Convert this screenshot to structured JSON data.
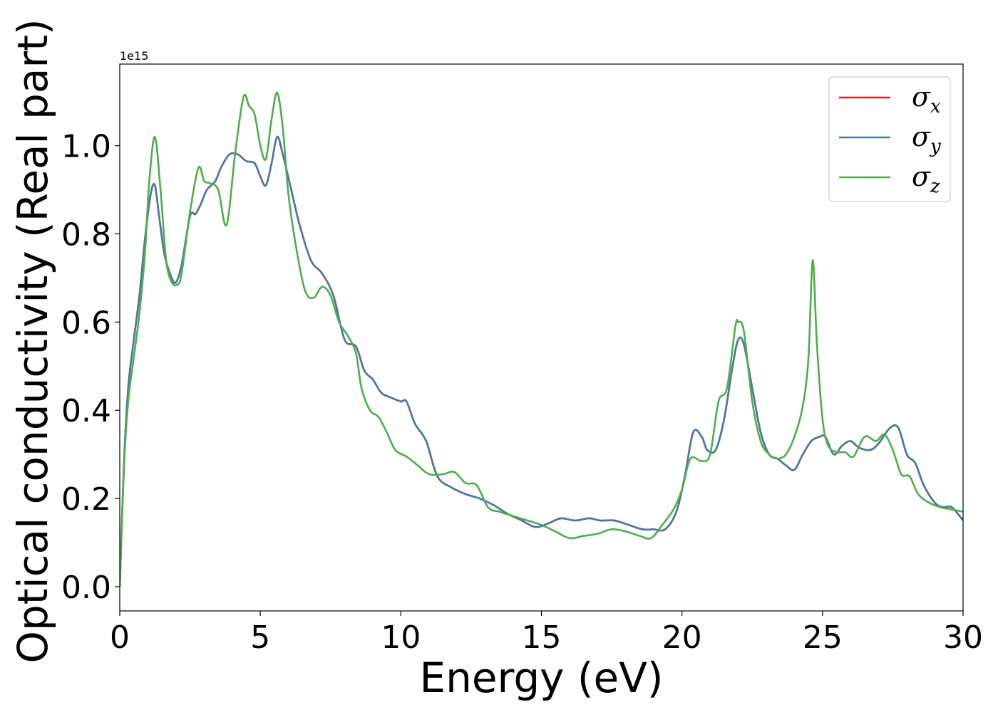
{
  "chart_data": {
    "type": "line",
    "xlabel": "Energy (eV)",
    "ylabel": "Optical conductivity (Real part)",
    "y_offset_text": "1e15",
    "y_scale": 1000000000000000.0,
    "xlim": [
      0,
      30
    ],
    "ylim": [
      -0.055,
      1.185
    ],
    "xticks": [
      0,
      5,
      10,
      15,
      20,
      25,
      30
    ],
    "xtick_labels": [
      "0",
      "5",
      "10",
      "15",
      "20",
      "25",
      "30"
    ],
    "yticks": [
      0.0,
      0.2,
      0.4,
      0.6,
      0.8,
      1.0
    ],
    "ytick_labels": [
      "0.0",
      "0.2",
      "0.4",
      "0.6",
      "0.8",
      "1.0"
    ],
    "grid": false,
    "legend_position": "top-right",
    "series": [
      {
        "name": "σx",
        "symbol": "σ",
        "subscript": "x",
        "color": "#e41a1c",
        "x": [
          0,
          0.15,
          0.3,
          0.5,
          0.7,
          0.9,
          1.1,
          1.25,
          1.4,
          1.6,
          1.85,
          2.0,
          2.2,
          2.5,
          2.7,
          2.9,
          3.1,
          3.4,
          3.6,
          3.9,
          4.2,
          4.5,
          4.8,
          5.0,
          5.2,
          5.4,
          5.6,
          5.8,
          6.1,
          6.4,
          6.8,
          7.2,
          7.6,
          8.0,
          8.4,
          8.7,
          9.0,
          9.3,
          9.6,
          10.0,
          10.2,
          10.5,
          10.9,
          11.3,
          11.8,
          12.3,
          12.8,
          13.3,
          13.8,
          14.3,
          14.8,
          15.3,
          15.7,
          16.2,
          16.7,
          17.1,
          17.6,
          18.1,
          18.6,
          19.0,
          19.4,
          19.8,
          20.1,
          20.4,
          20.7,
          20.9,
          21.2,
          21.5,
          21.8,
          22.0,
          22.2,
          22.5,
          22.8,
          23.1,
          23.4,
          23.7,
          24.0,
          24.3,
          24.6,
          24.9,
          25.1,
          25.4,
          25.7,
          26.0,
          26.3,
          26.7,
          27.0,
          27.4,
          27.7,
          28.0,
          28.3,
          28.6,
          29.0,
          29.3,
          29.6,
          30.0
        ],
        "y": [
          0.0,
          0.28,
          0.45,
          0.56,
          0.66,
          0.79,
          0.89,
          0.91,
          0.84,
          0.75,
          0.7,
          0.69,
          0.73,
          0.84,
          0.845,
          0.87,
          0.9,
          0.92,
          0.95,
          0.98,
          0.98,
          0.965,
          0.96,
          0.93,
          0.91,
          0.96,
          1.02,
          0.98,
          0.9,
          0.82,
          0.74,
          0.71,
          0.66,
          0.56,
          0.545,
          0.49,
          0.47,
          0.44,
          0.43,
          0.42,
          0.42,
          0.37,
          0.33,
          0.25,
          0.225,
          0.21,
          0.2,
          0.185,
          0.165,
          0.15,
          0.135,
          0.145,
          0.155,
          0.15,
          0.155,
          0.15,
          0.15,
          0.14,
          0.13,
          0.13,
          0.13,
          0.17,
          0.25,
          0.35,
          0.34,
          0.31,
          0.31,
          0.38,
          0.5,
          0.56,
          0.55,
          0.45,
          0.35,
          0.3,
          0.29,
          0.275,
          0.265,
          0.3,
          0.33,
          0.34,
          0.34,
          0.3,
          0.32,
          0.33,
          0.315,
          0.31,
          0.325,
          0.36,
          0.36,
          0.3,
          0.28,
          0.23,
          0.19,
          0.18,
          0.18,
          0.15
        ]
      },
      {
        "name": "σy",
        "symbol": "σ",
        "subscript": "y",
        "color": "#4a78aa",
        "x": [
          0,
          0.15,
          0.3,
          0.5,
          0.7,
          0.9,
          1.1,
          1.25,
          1.4,
          1.6,
          1.85,
          2.0,
          2.2,
          2.5,
          2.7,
          2.9,
          3.1,
          3.4,
          3.6,
          3.9,
          4.2,
          4.5,
          4.8,
          5.0,
          5.2,
          5.4,
          5.6,
          5.8,
          6.1,
          6.4,
          6.8,
          7.2,
          7.6,
          8.0,
          8.4,
          8.7,
          9.0,
          9.3,
          9.6,
          10.0,
          10.2,
          10.5,
          10.9,
          11.3,
          11.8,
          12.3,
          12.8,
          13.3,
          13.8,
          14.3,
          14.8,
          15.3,
          15.7,
          16.2,
          16.7,
          17.1,
          17.6,
          18.1,
          18.6,
          19.0,
          19.4,
          19.8,
          20.1,
          20.4,
          20.7,
          20.9,
          21.2,
          21.5,
          21.8,
          22.0,
          22.2,
          22.5,
          22.8,
          23.1,
          23.4,
          23.7,
          24.0,
          24.3,
          24.6,
          24.9,
          25.1,
          25.4,
          25.7,
          26.0,
          26.3,
          26.7,
          27.0,
          27.4,
          27.7,
          28.0,
          28.3,
          28.6,
          29.0,
          29.3,
          29.6,
          30.0
        ],
        "y": [
          0.0,
          0.28,
          0.45,
          0.56,
          0.66,
          0.79,
          0.89,
          0.91,
          0.84,
          0.75,
          0.7,
          0.69,
          0.73,
          0.84,
          0.845,
          0.87,
          0.9,
          0.92,
          0.95,
          0.98,
          0.98,
          0.965,
          0.96,
          0.93,
          0.91,
          0.96,
          1.02,
          0.98,
          0.9,
          0.82,
          0.74,
          0.71,
          0.66,
          0.56,
          0.545,
          0.49,
          0.47,
          0.44,
          0.43,
          0.42,
          0.42,
          0.37,
          0.33,
          0.25,
          0.225,
          0.21,
          0.2,
          0.185,
          0.165,
          0.15,
          0.135,
          0.145,
          0.155,
          0.15,
          0.155,
          0.15,
          0.15,
          0.14,
          0.13,
          0.13,
          0.13,
          0.17,
          0.25,
          0.35,
          0.34,
          0.31,
          0.31,
          0.38,
          0.5,
          0.56,
          0.55,
          0.45,
          0.35,
          0.3,
          0.29,
          0.275,
          0.265,
          0.3,
          0.33,
          0.34,
          0.34,
          0.3,
          0.32,
          0.33,
          0.315,
          0.31,
          0.325,
          0.36,
          0.36,
          0.3,
          0.28,
          0.23,
          0.19,
          0.18,
          0.18,
          0.15
        ]
      },
      {
        "name": "σz",
        "symbol": "σ",
        "subscript": "z",
        "color": "#4daf4a",
        "x": [
          0,
          0.15,
          0.3,
          0.5,
          0.7,
          0.9,
          1.05,
          1.25,
          1.45,
          1.65,
          1.85,
          2.05,
          2.2,
          2.5,
          2.8,
          3.0,
          3.2,
          3.5,
          3.8,
          4.1,
          4.4,
          4.6,
          4.8,
          5.0,
          5.2,
          5.4,
          5.6,
          5.8,
          6.0,
          6.3,
          6.6,
          6.9,
          7.2,
          7.5,
          7.8,
          8.1,
          8.4,
          8.6,
          8.9,
          9.2,
          9.5,
          9.8,
          10.2,
          10.6,
          11.0,
          11.5,
          11.9,
          12.3,
          12.7,
          13.1,
          13.5,
          14.0,
          14.5,
          15.0,
          15.5,
          16.0,
          16.5,
          17.0,
          17.5,
          18.0,
          18.5,
          18.9,
          19.3,
          19.7,
          20.0,
          20.3,
          20.7,
          21.0,
          21.3,
          21.6,
          21.9,
          22.0,
          22.2,
          22.5,
          22.8,
          23.1,
          23.4,
          23.7,
          24.0,
          24.3,
          24.5,
          24.65,
          24.8,
          25.0,
          25.2,
          25.5,
          25.8,
          26.1,
          26.5,
          26.9,
          27.2,
          27.5,
          27.8,
          28.1,
          28.4,
          28.8,
          29.2,
          29.6,
          30.0
        ],
        "y": [
          0.0,
          0.27,
          0.42,
          0.52,
          0.62,
          0.76,
          0.92,
          1.02,
          0.9,
          0.74,
          0.69,
          0.685,
          0.71,
          0.85,
          0.95,
          0.92,
          0.915,
          0.9,
          0.82,
          0.98,
          1.11,
          1.09,
          1.07,
          1.0,
          0.97,
          1.06,
          1.12,
          1.04,
          0.89,
          0.76,
          0.67,
          0.655,
          0.68,
          0.66,
          0.6,
          0.57,
          0.53,
          0.45,
          0.4,
          0.385,
          0.35,
          0.31,
          0.295,
          0.275,
          0.255,
          0.255,
          0.26,
          0.235,
          0.23,
          0.18,
          0.17,
          0.16,
          0.15,
          0.14,
          0.125,
          0.11,
          0.115,
          0.12,
          0.13,
          0.125,
          0.115,
          0.11,
          0.14,
          0.175,
          0.22,
          0.29,
          0.285,
          0.3,
          0.42,
          0.45,
          0.59,
          0.6,
          0.58,
          0.42,
          0.33,
          0.3,
          0.29,
          0.3,
          0.34,
          0.41,
          0.52,
          0.74,
          0.55,
          0.38,
          0.32,
          0.305,
          0.305,
          0.295,
          0.34,
          0.33,
          0.345,
          0.31,
          0.255,
          0.25,
          0.21,
          0.19,
          0.18,
          0.175,
          0.17
        ]
      }
    ]
  }
}
